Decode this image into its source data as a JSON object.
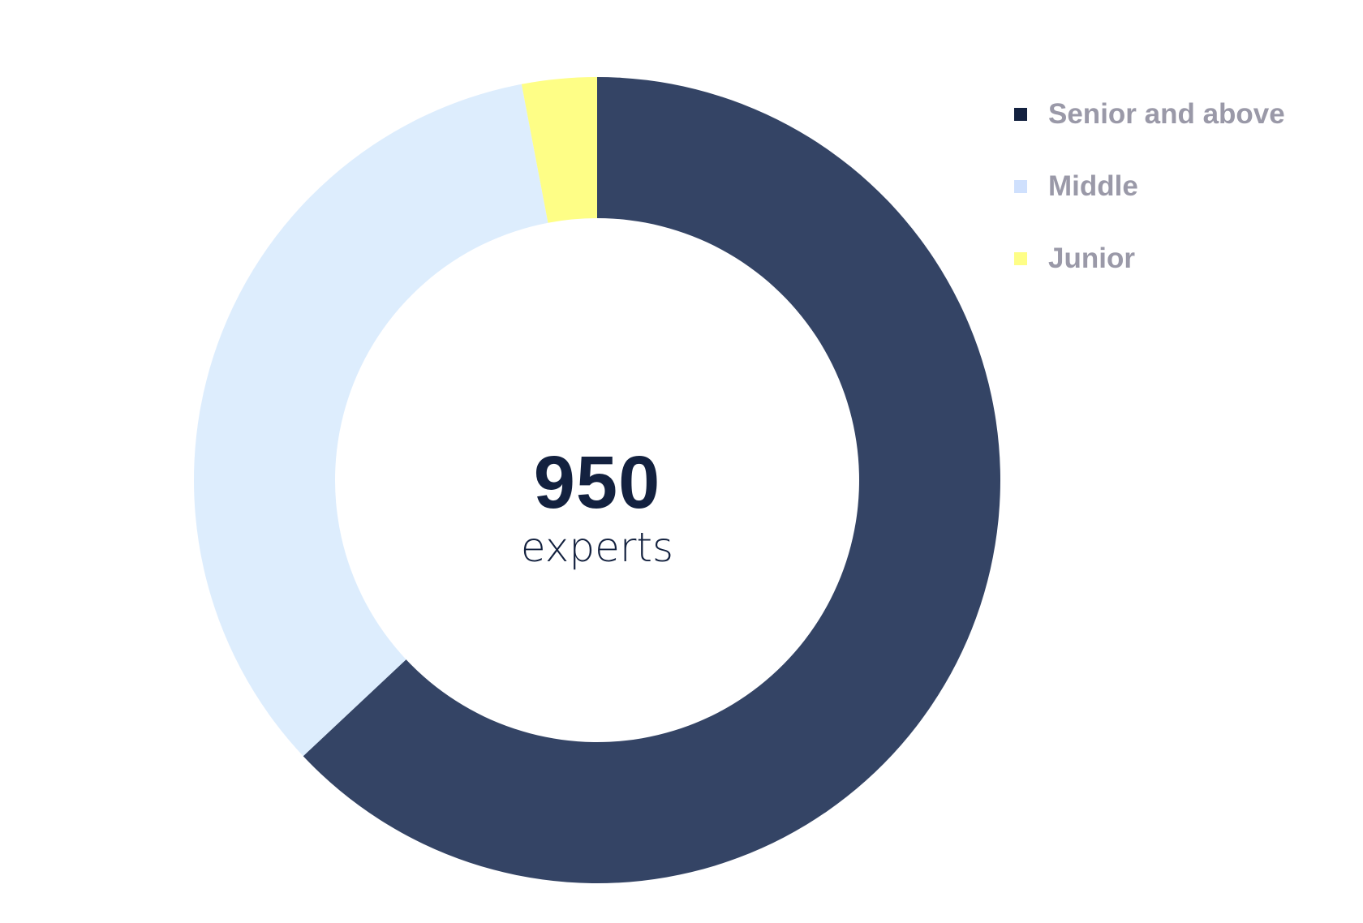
{
  "chart_data": {
    "type": "pie",
    "donut": true,
    "center_value": "950",
    "center_label": "experts",
    "categories": [
      "Senior and above",
      "Middle",
      "Junior"
    ],
    "values": [
      63,
      34,
      3
    ],
    "unit": "percent (estimated)",
    "colors": [
      "#344465",
      "#ddedfd",
      "#fefe86"
    ],
    "legend_colors": [
      "#13213f",
      "#cfe0fd",
      "#fefe86"
    ],
    "legend_position": "top-right"
  }
}
